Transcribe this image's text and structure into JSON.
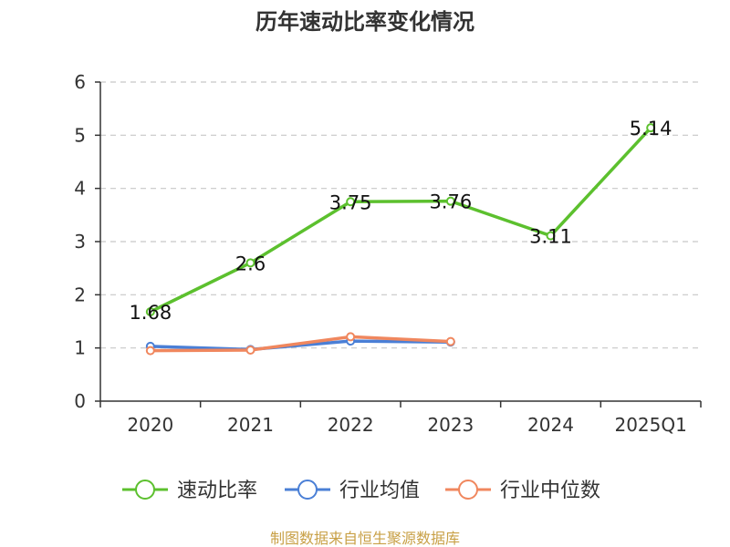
{
  "chart_data": {
    "type": "line",
    "title": "历年速动比率变化情况",
    "categories": [
      "2020",
      "2021",
      "2022",
      "2023",
      "2024",
      "2025Q1"
    ],
    "ylim": [
      0,
      6
    ],
    "yticks": [
      0,
      1,
      2,
      3,
      4,
      5,
      6
    ],
    "grid": true,
    "legend_position": "bottom",
    "series": [
      {
        "name": "速动比率",
        "color": "#5cc02e",
        "values": [
          1.68,
          2.6,
          3.75,
          3.76,
          3.11,
          5.14
        ],
        "labels": [
          "1.68",
          "2.6",
          "3.75",
          "3.76",
          "3.11",
          "5.14"
        ]
      },
      {
        "name": "行业均值",
        "color": "#4a7fd6",
        "values": [
          1.03,
          0.97,
          1.13,
          1.11,
          null,
          null
        ]
      },
      {
        "name": "行业中位数",
        "color": "#f0875e",
        "values": [
          0.95,
          0.96,
          1.21,
          1.12,
          null,
          null
        ]
      }
    ]
  },
  "source_text": "制图数据来自恒生聚源数据库"
}
